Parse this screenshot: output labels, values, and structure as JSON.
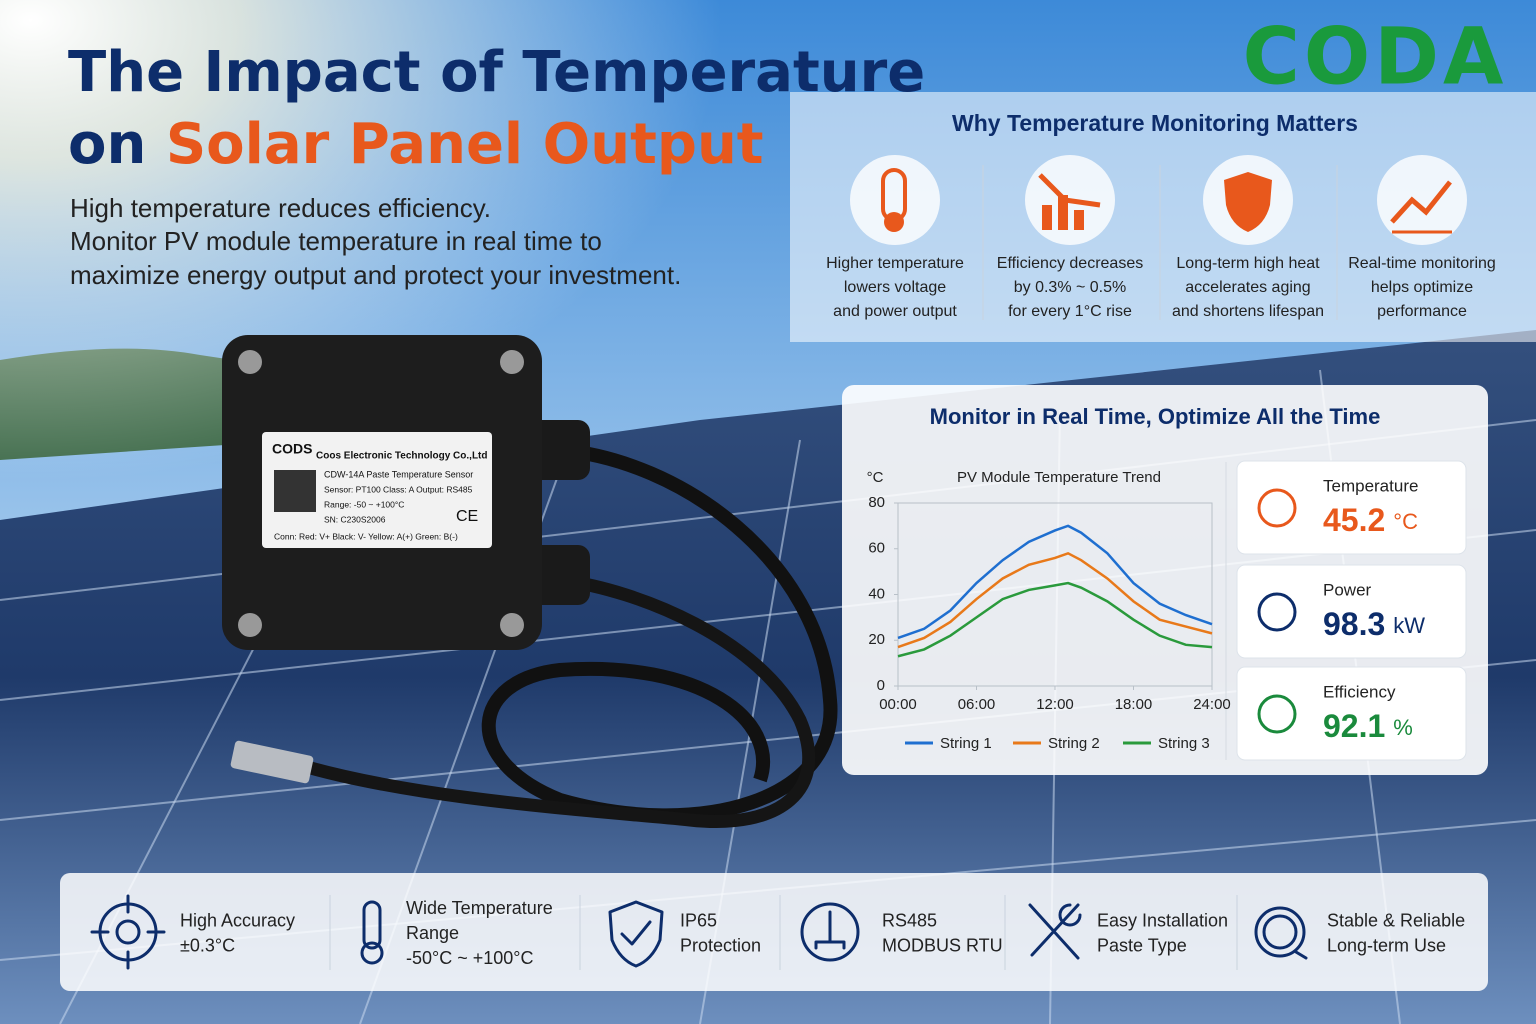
{
  "header": {
    "title_line1": "The Impact of Temperature",
    "title_line2_prefix": "on ",
    "title_line2_highlight": "Solar Panel Output",
    "subtitle_lines": [
      "High temperature reduces efficiency.",
      "Monitor PV module temperature in real time to",
      "maximize energy output and protect your investment."
    ],
    "logo": "CODA"
  },
  "reasons": {
    "heading": "Why Temperature Monitoring Matters",
    "items": [
      {
        "lines": [
          "Higher temperature",
          "lowers voltage",
          "and power output"
        ]
      },
      {
        "lines": [
          "Efficiency decreases",
          "by 0.3% ~ 0.5%",
          "for every 1°C rise"
        ]
      },
      {
        "lines": [
          "Long-term high heat",
          "accelerates aging",
          "and shortens lifespan"
        ]
      },
      {
        "lines": [
          "Real-time monitoring",
          "helps optimize",
          "performance"
        ]
      }
    ]
  },
  "device_label": {
    "brand": "CODS",
    "company": "Coos Electronic Technology Co.,Ltd",
    "model": "CDW-14A Paste Temperature Sensor",
    "spec": "Sensor: PT100   Class: A   Output: RS485",
    "range": "Range: -50 ~ +100°C",
    "sn": "SN: C230S2006",
    "mark": "CE",
    "conn": "Conn: Red: V+   Black: V-   Yellow: A(+)   Green: B(-)"
  },
  "monitor": {
    "heading": "Monitor in Real Time, Optimize All the Time",
    "metrics": [
      {
        "label": "Temperature",
        "value": "45.2",
        "unit": "°C"
      },
      {
        "label": "Power",
        "value": "98.3",
        "unit": "kW"
      },
      {
        "label": "Efficiency",
        "value": "92.1",
        "unit": "%"
      }
    ]
  },
  "chart_data": {
    "type": "line",
    "title": "PV Module Temperature Trend",
    "y_label": "°C",
    "x": [
      0,
      2,
      4,
      6,
      8,
      10,
      12,
      13,
      14,
      16,
      18,
      20,
      22,
      24
    ],
    "xlim": [
      0,
      24
    ],
    "xticks": [
      {
        "value": 0,
        "label": "00:00"
      },
      {
        "value": 6,
        "label": "06:00"
      },
      {
        "value": 12,
        "label": "12:00"
      },
      {
        "value": 18,
        "label": "18:00"
      },
      {
        "value": 24,
        "label": "24:00"
      }
    ],
    "ylim": [
      0,
      80
    ],
    "yticks": [
      0,
      20,
      40,
      60,
      80
    ],
    "grid": false,
    "legend": "bottom",
    "series": [
      {
        "name": "String 1",
        "color": "#1f6fd0",
        "values": [
          21,
          25,
          33,
          45,
          55,
          63,
          68,
          70,
          67,
          58,
          45,
          36,
          31,
          27
        ]
      },
      {
        "name": "String 2",
        "color": "#e8791a",
        "values": [
          17,
          21,
          28,
          38,
          47,
          53,
          56,
          58,
          55,
          47,
          37,
          29,
          26,
          23
        ]
      },
      {
        "name": "String 3",
        "color": "#2a9a3c",
        "values": [
          13,
          16,
          22,
          30,
          38,
          42,
          44,
          45,
          43,
          37,
          29,
          22,
          18,
          17
        ]
      }
    ]
  },
  "features": [
    {
      "lines": [
        "High Accuracy",
        "±0.3°C"
      ]
    },
    {
      "lines": [
        "Wide Temperature",
        "Range",
        "-50°C ~ +100°C"
      ]
    },
    {
      "lines": [
        "IP65",
        "Protection"
      ]
    },
    {
      "lines": [
        "RS485",
        "MODBUS RTU"
      ]
    },
    {
      "lines": [
        "Easy Installation",
        "Paste Type"
      ]
    },
    {
      "lines": [
        "Stable & Reliable",
        "Long-term Use"
      ]
    }
  ]
}
